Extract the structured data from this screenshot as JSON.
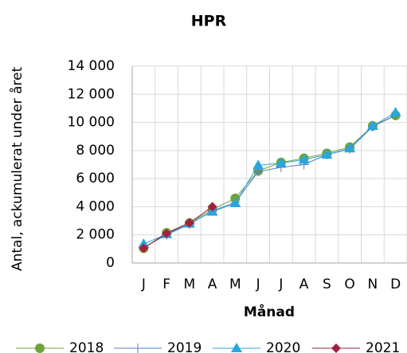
{
  "chart_data": {
    "type": "line",
    "title": "HPR",
    "x_label": "Månad",
    "y_label": "Antal, ackumulerat under året",
    "categories": [
      "J",
      "F",
      "M",
      "A",
      "M",
      "J",
      "J",
      "A",
      "S",
      "O",
      "N",
      "D"
    ],
    "series": [
      {
        "name": "2018",
        "color": "#6fa33a",
        "marker": "circle",
        "values": [
          1050,
          2150,
          2850,
          3800,
          4600,
          6550,
          7150,
          7450,
          7800,
          8250,
          9750,
          10500
        ]
      },
      {
        "name": "2019",
        "color": "#4f7fcf",
        "marker": "plus",
        "values": [
          1100,
          2000,
          2750,
          3700,
          4300,
          6500,
          6800,
          7000,
          7700,
          8100,
          9700,
          10500
        ]
      },
      {
        "name": "2020",
        "color": "#2aa5de",
        "marker": "triangle",
        "values": [
          1350,
          2050,
          2800,
          3650,
          4250,
          6950,
          7100,
          7350,
          7700,
          8150,
          9750,
          10700
        ]
      },
      {
        "name": "2021",
        "color": "#a3203f",
        "marker": "diamond",
        "values": [
          1050,
          2100,
          2850,
          4000,
          null,
          null,
          null,
          null,
          null,
          null,
          null,
          null
        ]
      }
    ],
    "ylim": [
      0,
      14000
    ],
    "yticks": [
      {
        "value": 0,
        "label": "0"
      },
      {
        "value": 2000,
        "label": "2 000"
      },
      {
        "value": 4000,
        "label": "4 000"
      },
      {
        "value": 6000,
        "label": "6 000"
      },
      {
        "value": 8000,
        "label": "8 000"
      },
      {
        "value": 10000,
        "label": "10 000"
      },
      {
        "value": 12000,
        "label": "12 000"
      },
      {
        "value": 14000,
        "label": "14 000"
      }
    ],
    "grid": true,
    "legend": "bottom"
  }
}
